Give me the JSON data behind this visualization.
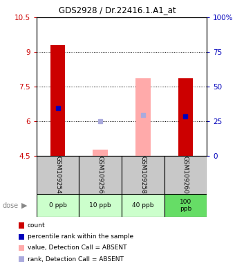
{
  "title": "GDS2928 / Dr.22416.1.A1_at",
  "samples": [
    "GSM109254",
    "GSM109256",
    "GSM109258",
    "GSM109260"
  ],
  "doses": [
    "0 ppb",
    "10 ppb",
    "40 ppb",
    "100\nppb"
  ],
  "ylim_left": [
    4.5,
    10.5
  ],
  "ylim_right": [
    0,
    100
  ],
  "yticks_left": [
    4.5,
    6.0,
    7.5,
    9.0,
    10.5
  ],
  "yticks_right": [
    0,
    25,
    50,
    75,
    100
  ],
  "ytick_labels_left": [
    "4.5",
    "6",
    "7.5",
    "9",
    "10.5"
  ],
  "ytick_labels_right": [
    "0",
    "25",
    "50",
    "75",
    "100%"
  ],
  "bar_bottom": 4.5,
  "red_bar_tops": [
    9.3,
    null,
    null,
    7.85
  ],
  "pink_bar_tops": [
    null,
    4.75,
    7.85,
    null
  ],
  "blue_dot_y": [
    6.55,
    null,
    null,
    6.2
  ],
  "light_blue_dot_y": [
    null,
    5.98,
    6.25,
    null
  ],
  "red_bar_color": "#cc0000",
  "pink_bar_color": "#ffaaaa",
  "blue_dot_color": "#0000bb",
  "light_blue_dot_color": "#aaaadd",
  "bar_width": 0.35,
  "sample_label_bg": "#c8c8c8",
  "dose_label_bg_light": "#ccffcc",
  "dose_label_bg_dark": "#66dd66",
  "legend_items": [
    {
      "label": "count",
      "color": "#cc0000"
    },
    {
      "label": "percentile rank within the sample",
      "color": "#0000bb"
    },
    {
      "label": "value, Detection Call = ABSENT",
      "color": "#ffaaaa"
    },
    {
      "label": "rank, Detection Call = ABSENT",
      "color": "#aaaadd"
    }
  ]
}
